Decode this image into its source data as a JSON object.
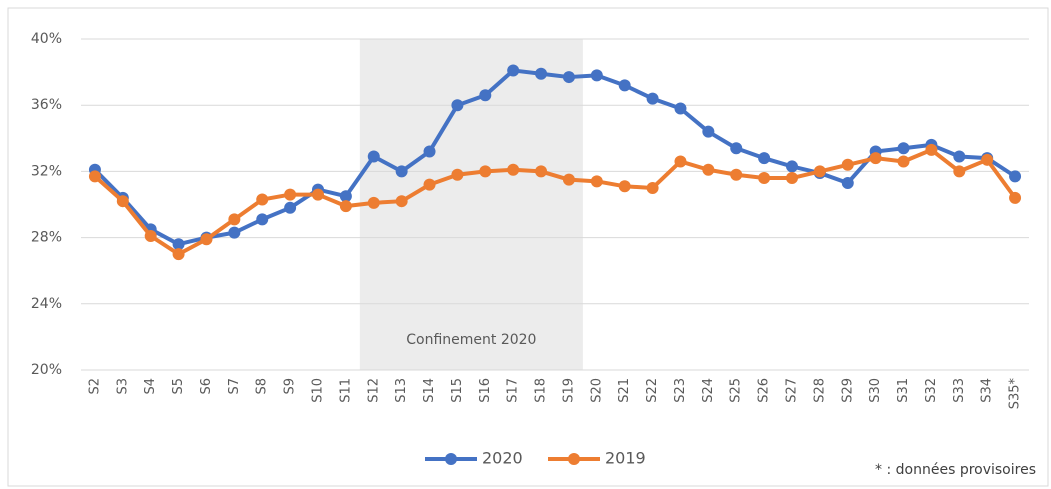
{
  "chart_data": {
    "type": "line",
    "categories": [
      "S2",
      "S3",
      "S4",
      "S5",
      "S6",
      "S7",
      "S8",
      "S9",
      "S10",
      "S11",
      "S12",
      "S13",
      "S14",
      "S15",
      "S16",
      "S17",
      "S18",
      "S19",
      "S20",
      "S21",
      "S22",
      "S23",
      "S24",
      "S25",
      "S26",
      "S27",
      "S28",
      "S29",
      "S30",
      "S31",
      "S32",
      "S33",
      "S34",
      "S35*"
    ],
    "series": [
      {
        "name": "2020",
        "color": "#4472c4",
        "values": [
          32.1,
          30.4,
          28.5,
          27.6,
          28.0,
          28.3,
          29.1,
          29.8,
          30.9,
          30.5,
          32.9,
          32.0,
          33.2,
          36.0,
          36.6,
          38.1,
          37.9,
          37.7,
          37.8,
          37.2,
          36.4,
          35.8,
          34.4,
          33.4,
          32.8,
          32.3,
          31.9,
          31.3,
          33.2,
          33.4,
          33.6,
          32.9,
          32.8,
          31.7
        ]
      },
      {
        "name": "2019",
        "color": "#ed7d31",
        "values": [
          31.7,
          30.2,
          28.1,
          27.0,
          27.9,
          29.1,
          30.3,
          30.6,
          30.6,
          29.9,
          30.1,
          30.2,
          31.2,
          31.8,
          32.0,
          32.1,
          32.0,
          31.5,
          31.4,
          31.1,
          31.0,
          32.6,
          32.1,
          31.8,
          31.6,
          31.6,
          32.0,
          32.4,
          32.8,
          32.6,
          33.3,
          32.0,
          32.7,
          30.4
        ]
      }
    ],
    "ylim": [
      20,
      40
    ],
    "yticks": [
      {
        "value": 20,
        "label": "20%"
      },
      {
        "value": 24,
        "label": "24%"
      },
      {
        "value": 28,
        "label": "28%"
      },
      {
        "value": 32,
        "label": "32%"
      },
      {
        "value": 36,
        "label": "36%"
      },
      {
        "value": 40,
        "label": "40%"
      }
    ],
    "grid": true,
    "shade": {
      "from": "S12",
      "to": "S19",
      "label": "Confinement 2020",
      "color": "#ececec"
    },
    "legend": "bottom",
    "footnote": "* : données provisoires"
  }
}
